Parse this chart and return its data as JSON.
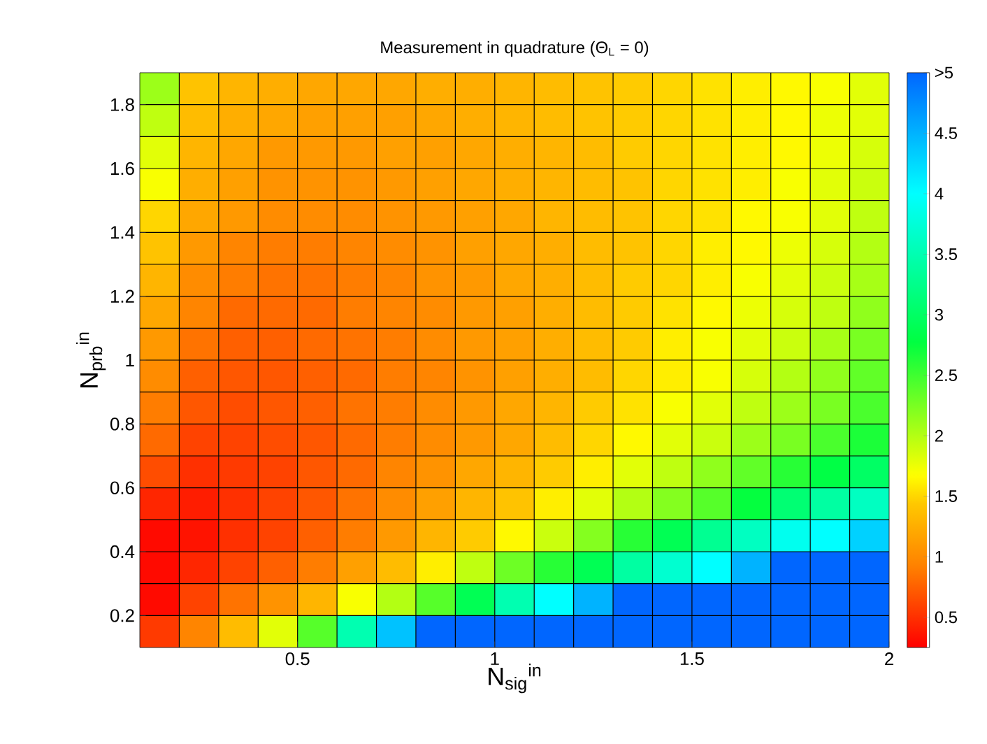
{
  "chart_data": {
    "type": "heatmap",
    "title": "Measurement in quadrature (Θ$_{L}$ = 0)",
    "xlabel": "N$_{sig}$$^{in}$",
    "ylabel": "N$_{prb}$$^{in}$",
    "xlim": [
      0.1,
      2.0
    ],
    "ylim": [
      0.1,
      1.9
    ],
    "xticks": [
      0.5,
      1,
      1.5,
      2
    ],
    "yticks": [
      0.2,
      0.4,
      0.6,
      0.8,
      1,
      1.2,
      1.4,
      1.6,
      1.8
    ],
    "clim": [
      0.25,
      5
    ],
    "grid": true,
    "cticks": [
      0.5,
      1,
      1.5,
      2,
      2.5,
      3,
      3.5,
      4,
      4.5,
      {
        "value": 5,
        "label": ">5"
      }
    ],
    "cells": [
      [
        2.1,
        1.4,
        1.3,
        1.25,
        1.2,
        1.2,
        1.2,
        1.25,
        1.25,
        1.3,
        1.35,
        1.4,
        1.45,
        1.5,
        1.55,
        1.6,
        1.65,
        1.7,
        1.8
      ],
      [
        1.95,
        1.35,
        1.25,
        1.2,
        1.15,
        1.15,
        1.15,
        1.2,
        1.25,
        1.3,
        1.35,
        1.4,
        1.45,
        1.5,
        1.55,
        1.6,
        1.65,
        1.75,
        1.8
      ],
      [
        1.8,
        1.3,
        1.2,
        1.1,
        1.1,
        1.1,
        1.15,
        1.15,
        1.2,
        1.25,
        1.3,
        1.35,
        1.45,
        1.5,
        1.55,
        1.6,
        1.65,
        1.75,
        1.85
      ],
      [
        1.7,
        1.25,
        1.15,
        1.05,
        1.05,
        1.05,
        1.1,
        1.15,
        1.2,
        1.25,
        1.3,
        1.35,
        1.4,
        1.5,
        1.55,
        1.6,
        1.7,
        1.8,
        1.9
      ],
      [
        1.5,
        1.2,
        1.1,
        1.0,
        1.0,
        1.0,
        1.05,
        1.1,
        1.15,
        1.2,
        1.3,
        1.35,
        1.4,
        1.5,
        1.55,
        1.65,
        1.7,
        1.8,
        1.95
      ],
      [
        1.4,
        1.1,
        0.95,
        0.9,
        0.9,
        0.95,
        1.0,
        1.05,
        1.15,
        1.2,
        1.25,
        1.35,
        1.4,
        1.5,
        1.6,
        1.65,
        1.75,
        1.85,
        2.0
      ],
      [
        1.3,
        1.0,
        0.9,
        0.85,
        0.85,
        0.9,
        0.95,
        1.05,
        1.1,
        1.2,
        1.25,
        1.35,
        1.45,
        1.5,
        1.6,
        1.7,
        1.8,
        1.9,
        2.05
      ],
      [
        1.2,
        0.95,
        0.8,
        0.8,
        0.8,
        0.9,
        0.95,
        1.0,
        1.1,
        1.15,
        1.25,
        1.35,
        1.45,
        1.55,
        1.65,
        1.75,
        1.85,
        1.95,
        2.15
      ],
      [
        1.1,
        0.85,
        0.75,
        0.75,
        0.8,
        0.85,
        0.9,
        1.0,
        1.1,
        1.15,
        1.25,
        1.35,
        1.45,
        1.6,
        1.7,
        1.8,
        1.9,
        2.05,
        2.25
      ],
      [
        1.0,
        0.75,
        0.7,
        0.7,
        0.75,
        0.8,
        0.9,
        0.95,
        1.05,
        1.15,
        1.25,
        1.35,
        1.5,
        1.6,
        1.7,
        1.85,
        2.0,
        2.15,
        2.35
      ],
      [
        0.9,
        0.7,
        0.65,
        0.7,
        0.75,
        0.85,
        0.9,
        1.0,
        1.1,
        1.2,
        1.3,
        1.45,
        1.55,
        1.7,
        1.8,
        1.95,
        2.1,
        2.25,
        2.45
      ],
      [
        0.8,
        0.6,
        0.6,
        0.65,
        0.7,
        0.8,
        0.9,
        1.0,
        1.1,
        1.2,
        1.35,
        1.5,
        1.65,
        1.8,
        1.9,
        2.1,
        2.25,
        2.45,
        2.65
      ],
      [
        0.65,
        0.5,
        0.55,
        0.6,
        0.7,
        0.8,
        0.95,
        1.05,
        1.2,
        1.3,
        1.45,
        1.6,
        1.8,
        1.95,
        2.15,
        2.35,
        2.6,
        2.8,
        3.0
      ],
      [
        0.45,
        0.4,
        0.5,
        0.6,
        0.7,
        0.85,
        1.0,
        1.15,
        1.3,
        1.4,
        1.6,
        1.8,
        2.0,
        2.2,
        2.4,
        2.75,
        3.1,
        3.4,
        3.6
      ],
      [
        0.3,
        0.35,
        0.5,
        0.6,
        0.75,
        0.9,
        1.1,
        1.3,
        1.45,
        1.65,
        1.9,
        2.2,
        2.6,
        2.9,
        3.3,
        3.6,
        3.9,
        4.0,
        4.3
      ],
      [
        0.3,
        0.45,
        0.6,
        0.75,
        0.9,
        1.15,
        1.35,
        1.6,
        1.95,
        2.3,
        2.6,
        2.9,
        3.4,
        3.7,
        4.0,
        4.5,
        5,
        5,
        5
      ],
      [
        0.3,
        0.6,
        0.85,
        1.05,
        1.3,
        1.7,
        2.0,
        2.4,
        2.9,
        3.5,
        4.0,
        4.5,
        5,
        5,
        5,
        5,
        5,
        5,
        5
      ],
      [
        0.55,
        0.95,
        1.35,
        1.8,
        2.4,
        3.5,
        4.4,
        5,
        5,
        5,
        5,
        5,
        5,
        5,
        5,
        5,
        5,
        5,
        5
      ]
    ]
  }
}
